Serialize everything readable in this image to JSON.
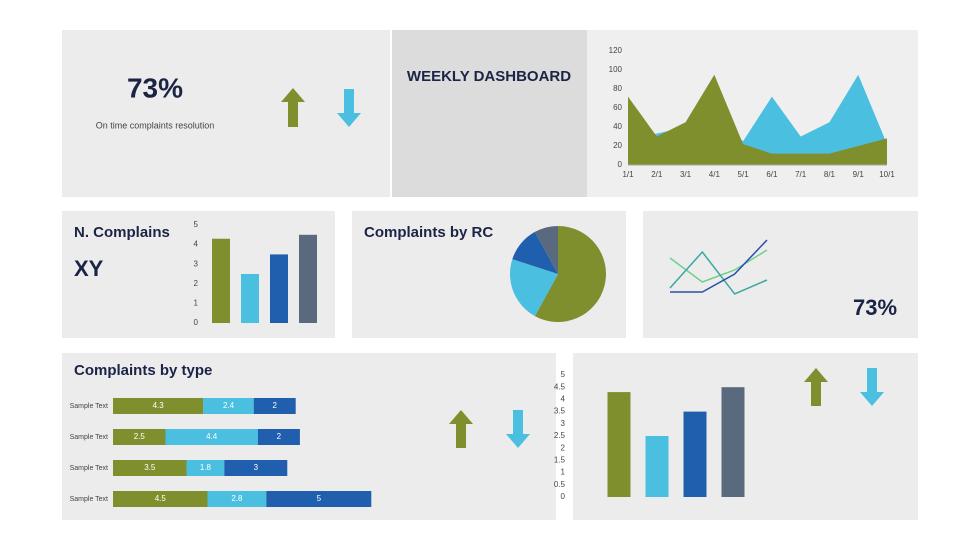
{
  "panels": {
    "kpi_value": "73%",
    "kpi_label": "On time complaints resolution",
    "header": "WEEKLY DASHBOARD",
    "kpi2_value": "73%"
  },
  "chart_data": [
    {
      "type": "area",
      "categories": [
        "1/1",
        "2/1",
        "3/1",
        "4/1",
        "5/1",
        "6/1",
        "7/1",
        "8/1",
        "9/1",
        "10/1"
      ],
      "series": [
        {
          "color": "#4bbfe0",
          "values": [
            30,
            33,
            40,
            50,
            25,
            72,
            30,
            45,
            95,
            22
          ]
        },
        {
          "color": "#7f8f2e",
          "values": [
            72,
            30,
            45,
            95,
            22,
            12,
            12,
            12,
            20,
            28
          ]
        }
      ],
      "ylim": [
        0,
        120
      ],
      "yticks": [
        0,
        20,
        40,
        60,
        80,
        100,
        120
      ]
    },
    {
      "type": "bar",
      "title": "N. Complains",
      "subtitle": "XY",
      "values": [
        4.3,
        2.5,
        3.5,
        4.5
      ],
      "colors": [
        "#7f8f2e",
        "#4bbfe0",
        "#1f5fad",
        "#5a6a7e"
      ],
      "ylim": [
        0,
        5
      ],
      "yticks": [
        0,
        1,
        2,
        3,
        4,
        5
      ]
    },
    {
      "type": "pie",
      "title": "Complaints by RC",
      "values": [
        58,
        22,
        12,
        8
      ],
      "colors": [
        "#7f8f2e",
        "#4bbfe0",
        "#1f5fad",
        "#5a6a7e"
      ]
    },
    {
      "type": "line",
      "series": [
        {
          "color": "#6fd08c",
          "values": [
            4.2,
            1.8,
            3.0,
            5.0
          ]
        },
        {
          "color": "#3aa7a0",
          "values": [
            1.2,
            4.8,
            0.6,
            2.0
          ]
        },
        {
          "color": "#2a4fa8",
          "values": [
            0.8,
            0.8,
            2.6,
            6.0
          ]
        }
      ]
    },
    {
      "type": "bar",
      "orientation": "horizontal",
      "stacked": true,
      "title": "Complaints by type",
      "categories": [
        "Sample Text",
        "Sample Text",
        "Sample Text",
        "Sample Text"
      ],
      "series": [
        {
          "color": "#7f8f2e",
          "values": [
            4.3,
            2.5,
            3.5,
            4.5
          ]
        },
        {
          "color": "#4bbfe0",
          "values": [
            2.4,
            4.4,
            1.8,
            2.8
          ]
        },
        {
          "color": "#1f5fad",
          "values": [
            2,
            2,
            3,
            5
          ]
        }
      ]
    },
    {
      "type": "bar",
      "values": [
        4.3,
        2.5,
        3.5,
        4.5
      ],
      "colors": [
        "#7f8f2e",
        "#4bbfe0",
        "#1f5fad",
        "#5a6a7e"
      ],
      "ylim": [
        0,
        5
      ],
      "yticks": [
        0,
        0.5,
        1,
        1.5,
        2,
        2.5,
        3,
        3.5,
        4,
        4.5,
        5
      ]
    }
  ]
}
